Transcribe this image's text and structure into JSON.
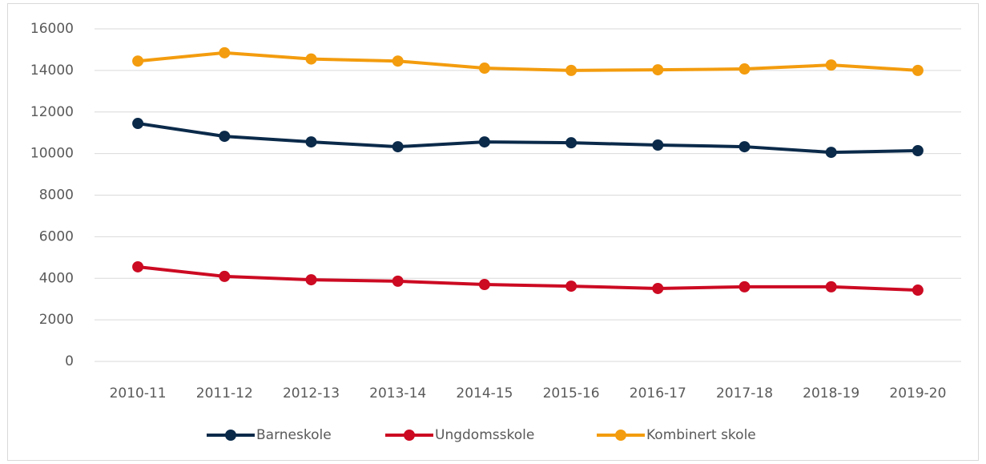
{
  "chart_data": {
    "type": "line",
    "categories": [
      "2010-11",
      "2011-12",
      "2012-13",
      "2013-14",
      "2014-15",
      "2015-16",
      "2016-17",
      "2017-18",
      "2018-19",
      "2019-20"
    ],
    "series": [
      {
        "name": "Barneskole",
        "color": "#0b2a4a",
        "values": [
          11450,
          10830,
          10560,
          10330,
          10560,
          10520,
          10410,
          10330,
          10060,
          10140
        ]
      },
      {
        "name": "Ungdomsskole",
        "color": "#cc0a22",
        "values": [
          4550,
          4090,
          3930,
          3860,
          3700,
          3620,
          3510,
          3590,
          3590,
          3430
        ]
      },
      {
        "name": "Kombinert skole",
        "color": "#f39c0e",
        "values": [
          14450,
          14850,
          14550,
          14450,
          14110,
          14000,
          14030,
          14070,
          14260,
          14000
        ]
      }
    ],
    "ylim": [
      0,
      16000
    ],
    "yticks": [
      0,
      2000,
      4000,
      6000,
      8000,
      10000,
      12000,
      14000,
      16000
    ],
    "grid": true,
    "legend": "bottom"
  }
}
